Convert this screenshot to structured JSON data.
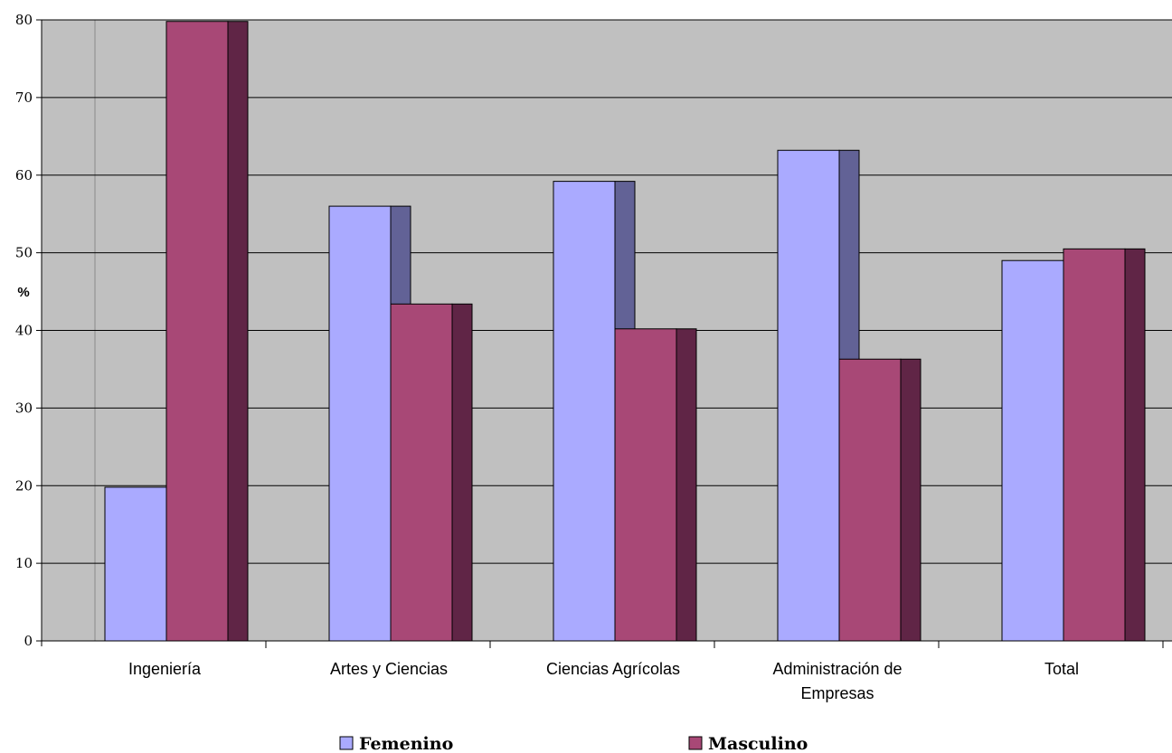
{
  "chart_data": {
    "type": "bar",
    "categories": [
      [
        "Ingeniería"
      ],
      [
        "Artes y Ciencias"
      ],
      [
        "Ciencias Agrícolas"
      ],
      [
        "Administración de",
        "Empresas"
      ],
      [
        "Total"
      ]
    ],
    "series": [
      {
        "name": "Femenino",
        "values": [
          19.8,
          56.0,
          59.2,
          63.2,
          49.0
        ],
        "color": "#aaaaff",
        "side_color": "#626296"
      },
      {
        "name": "Masculino",
        "values": [
          79.8,
          43.4,
          40.2,
          36.3,
          50.5
        ],
        "color": "#a84876",
        "side_color": "#602546"
      }
    ],
    "ylabel": "%",
    "ylim": [
      0,
      80
    ],
    "yticks": [
      "0",
      "10",
      "20",
      "30",
      "40",
      "50",
      "60",
      "70",
      "80"
    ],
    "grid": true,
    "plot_background": "#c0c0c0",
    "legend_position": "bottom"
  }
}
